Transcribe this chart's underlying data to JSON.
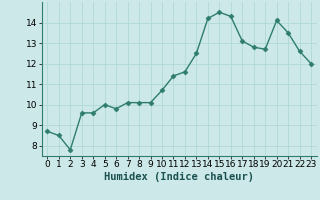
{
  "x": [
    0,
    1,
    2,
    3,
    4,
    5,
    6,
    7,
    8,
    9,
    10,
    11,
    12,
    13,
    14,
    15,
    16,
    17,
    18,
    19,
    20,
    21,
    22,
    23
  ],
  "y": [
    8.7,
    8.5,
    7.8,
    9.6,
    9.6,
    10.0,
    9.8,
    10.1,
    10.1,
    10.1,
    10.7,
    11.4,
    11.6,
    12.5,
    14.2,
    14.5,
    14.3,
    13.1,
    12.8,
    12.7,
    14.1,
    13.5,
    12.6,
    12.0
  ],
  "line_color": "#2e7d6e",
  "marker": "D",
  "marker_size": 2.5,
  "bg_color": "#cce8e8",
  "grid_color": "#b0d8d8",
  "xlabel": "Humidex (Indice chaleur)",
  "ylim": [
    7.5,
    15.0
  ],
  "xlim": [
    -0.5,
    23.5
  ],
  "yticks": [
    8,
    9,
    10,
    11,
    12,
    13,
    14
  ],
  "xticks": [
    0,
    1,
    2,
    3,
    4,
    5,
    6,
    7,
    8,
    9,
    10,
    11,
    12,
    13,
    14,
    15,
    16,
    17,
    18,
    19,
    20,
    21,
    22,
    23
  ],
  "tick_fontsize": 6.5,
  "xlabel_fontsize": 7.5,
  "linewidth": 1.0
}
